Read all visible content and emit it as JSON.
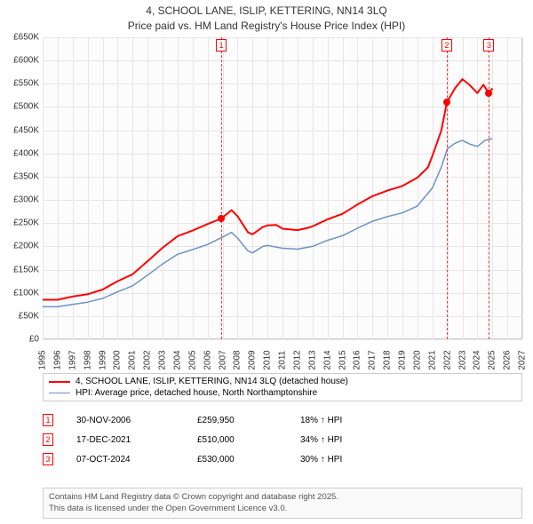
{
  "title_line1": "4, SCHOOL LANE, ISLIP, KETTERING, NN14 3LQ",
  "title_line2": "Price paid vs. HM Land Registry's House Price Index (HPI)",
  "chart": {
    "type": "line",
    "background_color": "#fcfcfc",
    "grid_color": "#e6e6e6",
    "border_color": "#cccccc",
    "x_min": 1995,
    "x_max": 2027,
    "x_ticks": [
      1995,
      1996,
      1997,
      1998,
      1999,
      2000,
      2001,
      2002,
      2003,
      2004,
      2005,
      2006,
      2007,
      2008,
      2009,
      2010,
      2011,
      2012,
      2013,
      2014,
      2015,
      2016,
      2017,
      2018,
      2019,
      2020,
      2021,
      2022,
      2023,
      2024,
      2025,
      2026,
      2027
    ],
    "y_min": 0,
    "y_max": 650,
    "y_step": 50,
    "y_ticks": [
      "£0",
      "£50K",
      "£100K",
      "£150K",
      "£200K",
      "£250K",
      "£300K",
      "£350K",
      "£400K",
      "£450K",
      "£500K",
      "£550K",
      "£600K",
      "£650K"
    ],
    "label_fontsize": 10,
    "series": [
      {
        "name": "4, SCHOOL LANE, ISLIP, KETTERING, NN14 3LQ (detached house)",
        "color": "#ff0000",
        "line_width": 2,
        "data": [
          [
            1995,
            85
          ],
          [
            1996,
            85
          ],
          [
            1997,
            92
          ],
          [
            1998,
            97
          ],
          [
            1999,
            107
          ],
          [
            2000,
            125
          ],
          [
            2001,
            140
          ],
          [
            2002,
            168
          ],
          [
            2003,
            197
          ],
          [
            2004,
            222
          ],
          [
            2005,
            234
          ],
          [
            2006,
            248
          ],
          [
            2006.92,
            260
          ],
          [
            2007.6,
            278
          ],
          [
            2008,
            265
          ],
          [
            2008.7,
            230
          ],
          [
            2009,
            226
          ],
          [
            2009.7,
            242
          ],
          [
            2010,
            245
          ],
          [
            2010.6,
            246
          ],
          [
            2011,
            238
          ],
          [
            2012,
            235
          ],
          [
            2012.7,
            240
          ],
          [
            2013,
            243
          ],
          [
            2014,
            258
          ],
          [
            2015,
            270
          ],
          [
            2016,
            290
          ],
          [
            2017,
            308
          ],
          [
            2018,
            320
          ],
          [
            2019,
            330
          ],
          [
            2020,
            348
          ],
          [
            2020.7,
            370
          ],
          [
            2021,
            395
          ],
          [
            2021.6,
            450
          ],
          [
            2021.96,
            510
          ],
          [
            2022.5,
            540
          ],
          [
            2023,
            560
          ],
          [
            2023.5,
            547
          ],
          [
            2024,
            530
          ],
          [
            2024.4,
            548
          ],
          [
            2024.77,
            530
          ],
          [
            2025,
            540
          ]
        ]
      },
      {
        "name": "HPI: Average price, detached house, North Northamptonshire",
        "color": "#6c93c9",
        "line_width": 1.5,
        "data": [
          [
            1995,
            70
          ],
          [
            1996,
            70
          ],
          [
            1997,
            75
          ],
          [
            1998,
            80
          ],
          [
            1999,
            88
          ],
          [
            2000,
            102
          ],
          [
            2001,
            115
          ],
          [
            2002,
            138
          ],
          [
            2003,
            162
          ],
          [
            2004,
            183
          ],
          [
            2005,
            193
          ],
          [
            2006,
            204
          ],
          [
            2007,
            220
          ],
          [
            2007.6,
            230
          ],
          [
            2008,
            218
          ],
          [
            2008.7,
            190
          ],
          [
            2009,
            186
          ],
          [
            2009.7,
            200
          ],
          [
            2010,
            202
          ],
          [
            2011,
            196
          ],
          [
            2012,
            194
          ],
          [
            2013,
            200
          ],
          [
            2014,
            213
          ],
          [
            2015,
            223
          ],
          [
            2016,
            239
          ],
          [
            2017,
            254
          ],
          [
            2018,
            264
          ],
          [
            2019,
            272
          ],
          [
            2020,
            287
          ],
          [
            2021,
            326
          ],
          [
            2021.6,
            371
          ],
          [
            2022,
            410
          ],
          [
            2022.5,
            422
          ],
          [
            2023,
            428
          ],
          [
            2023.5,
            420
          ],
          [
            2024,
            415
          ],
          [
            2024.5,
            428
          ],
          [
            2025,
            432
          ]
        ]
      }
    ],
    "event_markers": [
      {
        "n": "1",
        "x": 2006.92,
        "y": 260
      },
      {
        "n": "2",
        "x": 2021.96,
        "y": 510
      },
      {
        "n": "3",
        "x": 2024.77,
        "y": 530
      }
    ],
    "event_line_color": "#ff3333"
  },
  "legend": {
    "row1": "4, SCHOOL LANE, ISLIP, KETTERING, NN14 3LQ (detached house)",
    "row2": "HPI: Average price, detached house, North Northamptonshire"
  },
  "sales": [
    {
      "n": "1",
      "date": "30-NOV-2006",
      "price": "£259,950",
      "delta": "18% ↑ HPI"
    },
    {
      "n": "2",
      "date": "17-DEC-2021",
      "price": "£510,000",
      "delta": "34% ↑ HPI"
    },
    {
      "n": "3",
      "date": "07-OCT-2024",
      "price": "£530,000",
      "delta": "30% ↑ HPI"
    }
  ],
  "attribution_line1": "Contains HM Land Registry data © Crown copyright and database right 2025.",
  "attribution_line2": "This data is licensed under the Open Government Licence v3.0."
}
